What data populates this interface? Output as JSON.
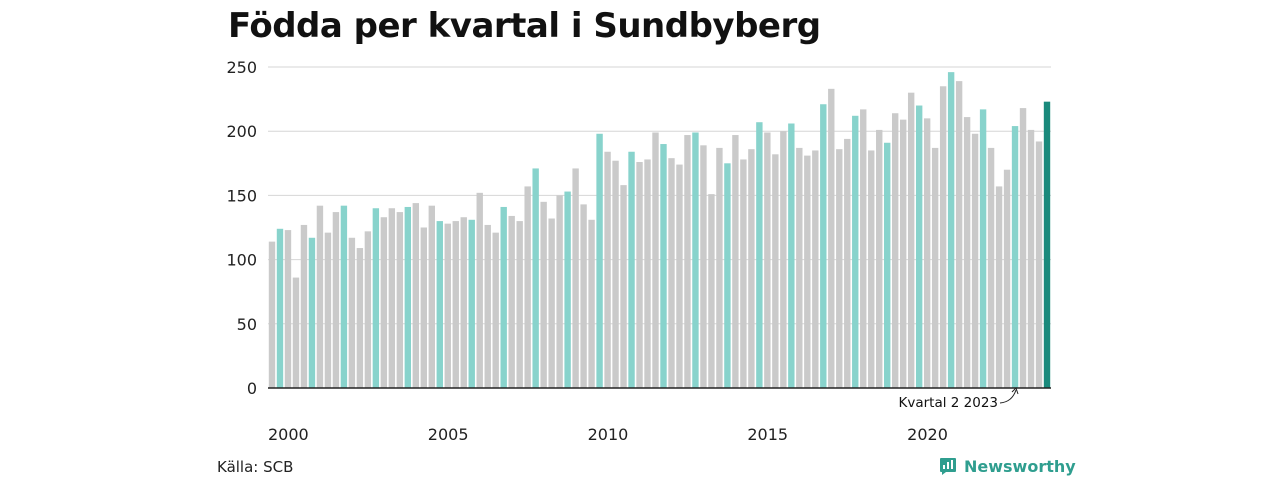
{
  "title": "Födda per kvartal i Sundbyberg",
  "source": "Källa: SCB",
  "brand": "Newsworthy",
  "colors": {
    "highlight": "#88d3cc",
    "default": "#cacaca",
    "latest": "#1a8a7c",
    "grid": "#d6d6d6",
    "axis": "#222222",
    "brand": "#2f9e8f"
  },
  "chart_data": {
    "type": "bar",
    "ylim": [
      0,
      250
    ],
    "yticks": [
      0,
      50,
      100,
      150,
      200,
      250
    ],
    "xtick_labels": [
      "2000",
      "2005",
      "2010",
      "2015",
      "2020"
    ],
    "xtick_indices": [
      0,
      20,
      40,
      60,
      80
    ],
    "start": "2000 Kvartal 1",
    "highlight_quarter": 2,
    "annotation": "Kvartal 2 2023",
    "values": [
      114,
      124,
      123,
      86,
      127,
      117,
      142,
      121,
      137,
      142,
      117,
      109,
      122,
      140,
      133,
      140,
      137,
      141,
      144,
      125,
      142,
      130,
      128,
      130,
      133,
      131,
      152,
      127,
      121,
      141,
      134,
      130,
      157,
      171,
      145,
      132,
      150,
      153,
      171,
      143,
      131,
      198,
      184,
      177,
      158,
      184,
      176,
      178,
      199,
      190,
      179,
      174,
      197,
      199,
      189,
      151,
      187,
      175,
      197,
      178,
      186,
      207,
      199,
      182,
      200,
      206,
      187,
      181,
      185,
      221,
      233,
      186,
      194,
      212,
      217,
      185,
      201,
      191,
      214,
      209,
      230,
      220,
      210,
      187,
      235,
      246,
      239,
      211,
      198,
      217,
      187,
      157,
      170,
      204,
      218,
      201,
      192,
      223
    ]
  }
}
